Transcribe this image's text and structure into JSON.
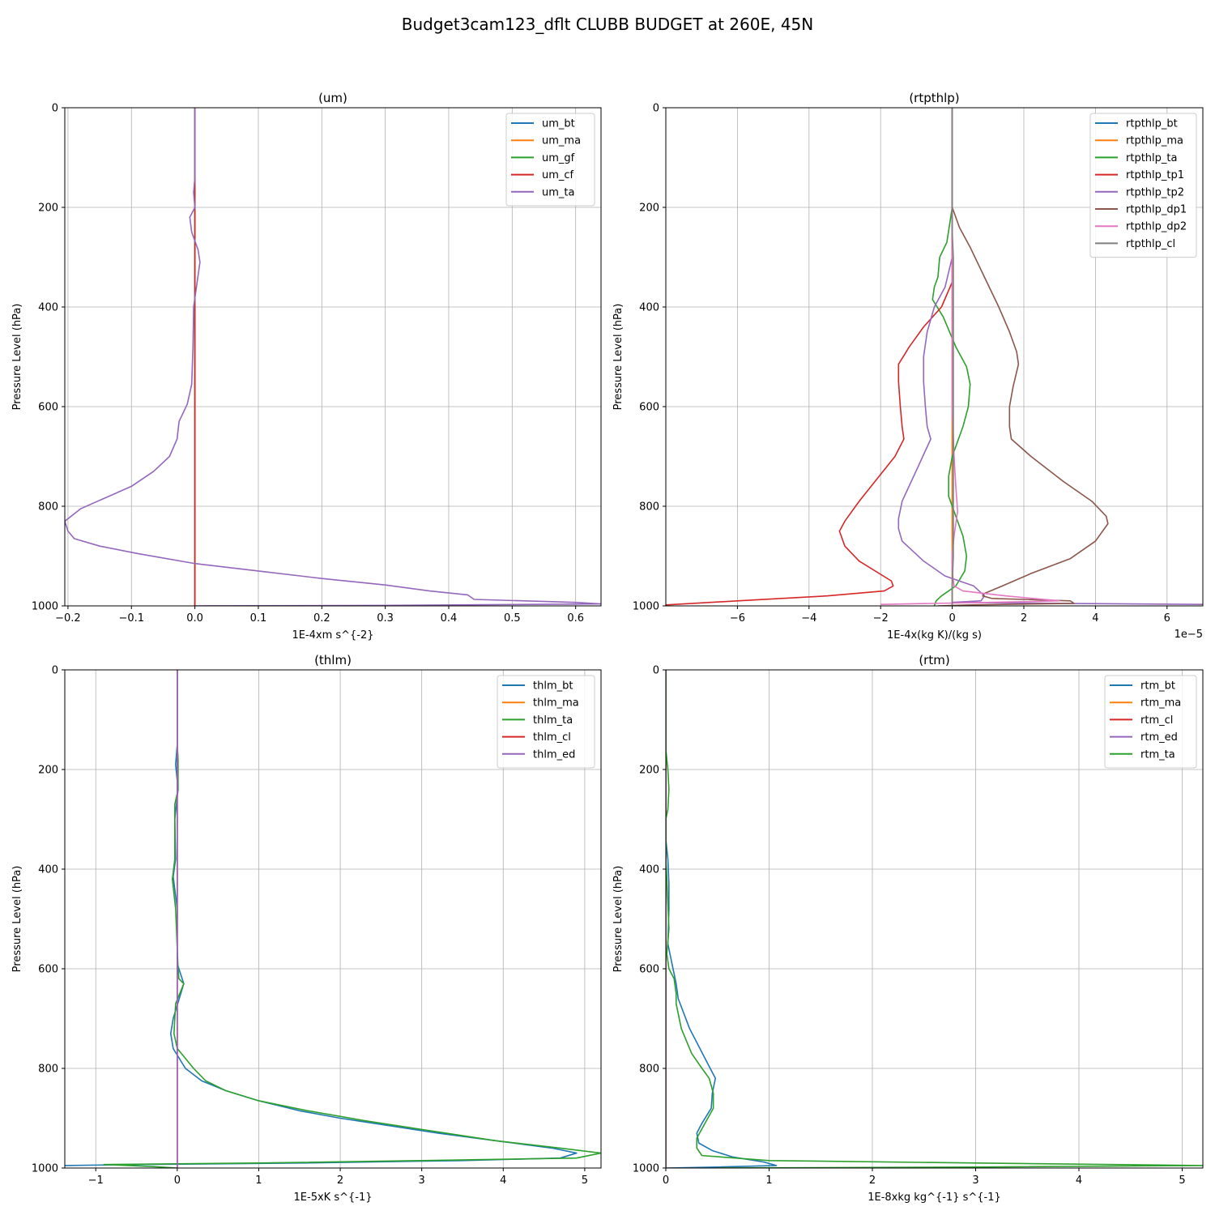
{
  "figure": {
    "title": "Budget3cam123_dflt CLUBB BUDGET at 260E, 45N"
  },
  "colors": {
    "grid": "#b0b0b0",
    "tab_blue": "#1f77b4",
    "tab_orange": "#ff7f0e",
    "tab_green": "#2ca02c",
    "tab_red": "#d62728",
    "tab_purple": "#9467bd",
    "tab_brown": "#8c564b",
    "tab_pink": "#e377c2",
    "tab_gray": "#7f7f7f"
  },
  "chart_data": [
    {
      "type": "line",
      "title": "(um)",
      "xlabel": "1E-4xm s^{-2}",
      "ylabel": "Pressure Level (hPa)",
      "xlim": [
        -0.205,
        0.64
      ],
      "ylim": [
        1000,
        0
      ],
      "xticks": [
        -0.2,
        -0.1,
        0.0,
        0.1,
        0.2,
        0.3,
        0.4,
        0.5,
        0.6
      ],
      "xtick_labels": [
        "−0.2",
        "−0.1",
        "0.0",
        "0.1",
        "0.2",
        "0.3",
        "0.4",
        "0.5",
        "0.6"
      ],
      "yticks": [
        0,
        200,
        400,
        600,
        800,
        1000
      ],
      "ytick_labels": [
        "0",
        "200",
        "400",
        "600",
        "800",
        "1000"
      ],
      "offset_text": "",
      "grid": true,
      "legend": "top-right",
      "series": [
        {
          "name": "um_bt",
          "color": "#1f77b4",
          "x": [
            0,
            0,
            0,
            0,
            0,
            0,
            0,
            0
          ],
          "y": [
            0,
            200,
            400,
            600,
            800,
            900,
            997,
            1000
          ]
        },
        {
          "name": "um_ma",
          "color": "#ff7f0e",
          "x": [
            0,
            0
          ],
          "y": [
            0,
            1000
          ]
        },
        {
          "name": "um_gf",
          "color": "#2ca02c",
          "x": [
            0,
            0
          ],
          "y": [
            0,
            1000
          ]
        },
        {
          "name": "um_cf",
          "color": "#d62728",
          "x": [
            0,
            0
          ],
          "y": [
            0,
            1000
          ]
        },
        {
          "name": "um_ta",
          "color": "#9467bd",
          "x": [
            0,
            0,
            -0.002,
            0.0,
            -0.008,
            -0.005,
            0.005,
            0.008,
            -0.002,
            -0.003,
            -0.005,
            -0.012,
            -0.025,
            -0.028,
            -0.04,
            -0.065,
            -0.1,
            -0.18,
            -0.205,
            -0.2,
            -0.19,
            -0.15,
            -0.09,
            0.0,
            0.1,
            0.2,
            0.3,
            0.37,
            0.43,
            0.44,
            0.52,
            0.6,
            0.64,
            0.3,
            0.0
          ],
          "y": [
            0,
            140,
            170,
            200,
            220,
            250,
            285,
            310,
            400,
            480,
            555,
            595,
            630,
            665,
            700,
            730,
            760,
            805,
            830,
            850,
            865,
            880,
            895,
            915,
            930,
            945,
            958,
            970,
            978,
            987,
            990,
            993,
            996,
            999,
            1000
          ]
        }
      ]
    },
    {
      "type": "line",
      "title": "(rtpthlp)",
      "xlabel": "1E-4x(kg K)/(kg s)",
      "ylabel": "Pressure Level (hPa)",
      "xlim": [
        -8.0,
        7.0
      ],
      "ylim": [
        1000,
        0
      ],
      "xticks": [
        -6,
        -4,
        -2,
        0,
        2,
        4,
        6
      ],
      "xtick_labels": [
        "−6",
        "−4",
        "−2",
        "0",
        "2",
        "4",
        "6"
      ],
      "yticks": [
        0,
        200,
        400,
        600,
        800,
        1000
      ],
      "ytick_labels": [
        "0",
        "200",
        "400",
        "600",
        "800",
        "1000"
      ],
      "offset_text": "1e−5",
      "grid": true,
      "legend": "top-right",
      "series": [
        {
          "name": "rtpthlp_bt",
          "color": "#1f77b4",
          "x": [
            0,
            0
          ],
          "y": [
            0,
            1000
          ]
        },
        {
          "name": "rtpthlp_ma",
          "color": "#ff7f0e",
          "x": [
            0,
            0
          ],
          "y": [
            0,
            1000
          ]
        },
        {
          "name": "rtpthlp_ta",
          "color": "#2ca02c",
          "x": [
            0,
            0,
            -0.15,
            -0.35,
            -0.4,
            -0.5,
            -0.55,
            -0.25,
            0.1,
            0.4,
            0.5,
            0.45,
            0.3,
            0.0,
            -0.1,
            -0.1,
            0.1,
            0.3,
            0.4,
            0.35,
            0.1,
            -0.3,
            -0.45,
            -0.5
          ],
          "y": [
            0,
            200,
            270,
            300,
            340,
            360,
            385,
            420,
            480,
            520,
            555,
            600,
            640,
            700,
            740,
            780,
            820,
            860,
            900,
            930,
            960,
            980,
            990,
            1000
          ]
        },
        {
          "name": "rtpthlp_tp1",
          "color": "#d62728",
          "x": [
            0,
            0,
            -0.3,
            -0.8,
            -1.2,
            -1.5,
            -1.5,
            -1.45,
            -1.4,
            -1.35,
            -1.6,
            -2.6,
            -3.0,
            -3.15,
            -3.0,
            -2.6,
            -1.7,
            -1.65,
            -1.9,
            -3.5,
            -6.0,
            -8.0
          ],
          "y": [
            0,
            350,
            400,
            440,
            480,
            515,
            550,
            600,
            640,
            665,
            700,
            790,
            830,
            850,
            880,
            910,
            950,
            960,
            970,
            980,
            990,
            998
          ]
        },
        {
          "name": "rtpthlp_tp2",
          "color": "#9467bd",
          "x": [
            0,
            0,
            -0.2,
            -0.5,
            -0.7,
            -0.8,
            -0.8,
            -0.75,
            -0.7,
            -0.6,
            -0.95,
            -1.4,
            -1.5,
            -1.5,
            -1.4,
            -0.8,
            -0.2,
            0.6,
            0.9,
            0.8,
            0.0,
            3.0,
            7.0
          ],
          "y": [
            0,
            300,
            360,
            400,
            450,
            500,
            550,
            600,
            640,
            665,
            720,
            790,
            825,
            845,
            870,
            910,
            940,
            960,
            980,
            990,
            993,
            995,
            997
          ]
        },
        {
          "name": "rtpthlp_dp1",
          "color": "#8c564b",
          "x": [
            0,
            0,
            0.2,
            0.5,
            0.9,
            1.3,
            1.6,
            1.8,
            1.85,
            1.7,
            1.6,
            1.6,
            1.65,
            2.2,
            3.1,
            3.9,
            4.3,
            4.35,
            4.0,
            3.3,
            2.2,
            1.4,
            0.9,
            0.85,
            1.1,
            3.3,
            3.4,
            0.5,
            -0.4
          ],
          "y": [
            0,
            200,
            240,
            280,
            340,
            400,
            450,
            490,
            515,
            560,
            600,
            640,
            665,
            700,
            750,
            790,
            820,
            835,
            870,
            905,
            935,
            960,
            975,
            980,
            985,
            990,
            995,
            998,
            1000
          ]
        },
        {
          "name": "rtpthlp_dp2",
          "color": "#e377c2",
          "x": [
            0,
            0,
            0.05,
            0.1,
            0.15,
            0.05,
            0.0,
            0.0,
            0.05,
            0.3,
            1.5,
            3.0,
            1.0,
            -2.0
          ],
          "y": [
            0,
            600,
            700,
            760,
            810,
            860,
            900,
            930,
            960,
            970,
            980,
            990,
            993,
            997
          ]
        },
        {
          "name": "rtpthlp_cl",
          "color": "#7f7f7f",
          "x": [
            0,
            0,
            0.03,
            0.03,
            0.0,
            0.0
          ],
          "y": [
            0,
            250,
            300,
            900,
            960,
            1000
          ]
        }
      ]
    },
    {
      "type": "line",
      "title": "(thlm)",
      "xlabel": "1E-5xK s^{-1}",
      "ylabel": "Pressure Level (hPa)",
      "xlim": [
        -1.38,
        5.2
      ],
      "ylim": [
        1000,
        0
      ],
      "xticks": [
        -1,
        0,
        1,
        2,
        3,
        4,
        5
      ],
      "xtick_labels": [
        "−1",
        "0",
        "1",
        "2",
        "3",
        "4",
        "5"
      ],
      "yticks": [
        0,
        200,
        400,
        600,
        800,
        1000
      ],
      "ytick_labels": [
        "0",
        "200",
        "400",
        "600",
        "800",
        "1000"
      ],
      "offset_text": "",
      "grid": true,
      "legend": "top-right",
      "series": [
        {
          "name": "thlm_bt",
          "color": "#1f77b4",
          "x": [
            0,
            0,
            -0.02,
            0.01,
            -0.03,
            -0.02,
            -0.05,
            0.0,
            0.0,
            0.08,
            -0.05,
            -0.08,
            -0.05,
            0.1,
            0.3,
            0.6,
            1.0,
            1.5,
            2.0,
            2.6,
            3.2,
            3.9,
            4.6,
            4.9,
            4.7,
            3.5,
            1.5,
            -0.5,
            -1.38
          ],
          "y": [
            0,
            150,
            190,
            240,
            300,
            380,
            415,
            480,
            590,
            630,
            700,
            730,
            760,
            800,
            825,
            845,
            865,
            885,
            900,
            915,
            930,
            945,
            960,
            970,
            980,
            985,
            990,
            993,
            995
          ]
        },
        {
          "name": "thlm_ma",
          "color": "#ff7f0e",
          "x": [
            0,
            0
          ],
          "y": [
            0,
            1000
          ]
        },
        {
          "name": "thlm_ta",
          "color": "#2ca02c",
          "x": [
            0,
            0,
            0.01,
            0.01,
            -0.03,
            -0.03,
            -0.06,
            -0.02,
            0.01,
            0.02,
            0.08,
            -0.02,
            -0.04,
            0.0,
            0.2,
            0.35,
            0.6,
            1.0,
            1.6,
            2.3,
            3.1,
            3.9,
            4.7,
            5.2,
            4.9,
            3.0,
            1.0,
            -0.9,
            -0.3,
            0.0
          ],
          "y": [
            0,
            150,
            180,
            240,
            270,
            380,
            420,
            480,
            600,
            620,
            630,
            670,
            730,
            760,
            800,
            825,
            845,
            865,
            885,
            905,
            925,
            945,
            960,
            970,
            980,
            985,
            990,
            993,
            997,
            1000
          ]
        },
        {
          "name": "thlm_cl",
          "color": "#d62728",
          "x": [
            0,
            0
          ],
          "y": [
            0,
            1000
          ]
        },
        {
          "name": "thlm_ed",
          "color": "#9467bd",
          "x": [
            0,
            0
          ],
          "y": [
            0,
            1000
          ]
        }
      ]
    },
    {
      "type": "line",
      "title": "(rtm)",
      "xlabel": "1E-8xkg kg^{-1} s^{-1}",
      "ylabel": "Pressure Level (hPa)",
      "xlim": [
        0.0,
        5.2
      ],
      "ylim": [
        1000,
        0
      ],
      "xticks": [
        0,
        1,
        2,
        3,
        4,
        5
      ],
      "xtick_labels": [
        "0",
        "1",
        "2",
        "3",
        "4",
        "5"
      ],
      "yticks": [
        0,
        200,
        400,
        600,
        800,
        1000
      ],
      "ytick_labels": [
        "0",
        "200",
        "400",
        "600",
        "800",
        "1000"
      ],
      "offset_text": "",
      "grid": true,
      "legend": "top-right",
      "series": [
        {
          "name": "rtm_bt",
          "color": "#1f77b4",
          "x": [
            0,
            0,
            0.02,
            0.03,
            0.03,
            0.02,
            0.06,
            0.1,
            0.12,
            0.23,
            0.38,
            0.48,
            0.45,
            0.44,
            0.35,
            0.3,
            0.32,
            0.45,
            0.65,
            0.95,
            1.07,
            0.5,
            0.0
          ],
          "y": [
            0,
            340,
            380,
            430,
            480,
            550,
            590,
            630,
            660,
            720,
            780,
            820,
            850,
            880,
            910,
            930,
            950,
            965,
            978,
            988,
            995,
            998,
            1000
          ]
        },
        {
          "name": "rtm_ma",
          "color": "#ff7f0e",
          "x": [
            0,
            0
          ],
          "y": [
            0,
            1000
          ]
        },
        {
          "name": "rtm_cl",
          "color": "#d62728",
          "x": [
            0,
            0
          ],
          "y": [
            0,
            1000
          ]
        },
        {
          "name": "rtm_ed",
          "color": "#9467bd",
          "x": [
            0,
            0
          ],
          "y": [
            0,
            1000
          ]
        },
        {
          "name": "rtm_ta",
          "color": "#2ca02c",
          "x": [
            0,
            0,
            0.02,
            0.03,
            0.02,
            0.0,
            0.0,
            0.01,
            0.02,
            0.03,
            0.01,
            0.03,
            0.08,
            0.1,
            0.1,
            0.15,
            0.25,
            0.35,
            0.42,
            0.46,
            0.46,
            0.38,
            0.3,
            0.3,
            0.35,
            1.0,
            3.0,
            5.2,
            3.0,
            0.5
          ],
          "y": [
            0,
            160,
            200,
            240,
            280,
            300,
            380,
            420,
            470,
            520,
            570,
            600,
            620,
            650,
            670,
            720,
            770,
            800,
            820,
            850,
            880,
            910,
            940,
            960,
            975,
            985,
            990,
            995,
            998,
            1000
          ]
        }
      ]
    }
  ]
}
